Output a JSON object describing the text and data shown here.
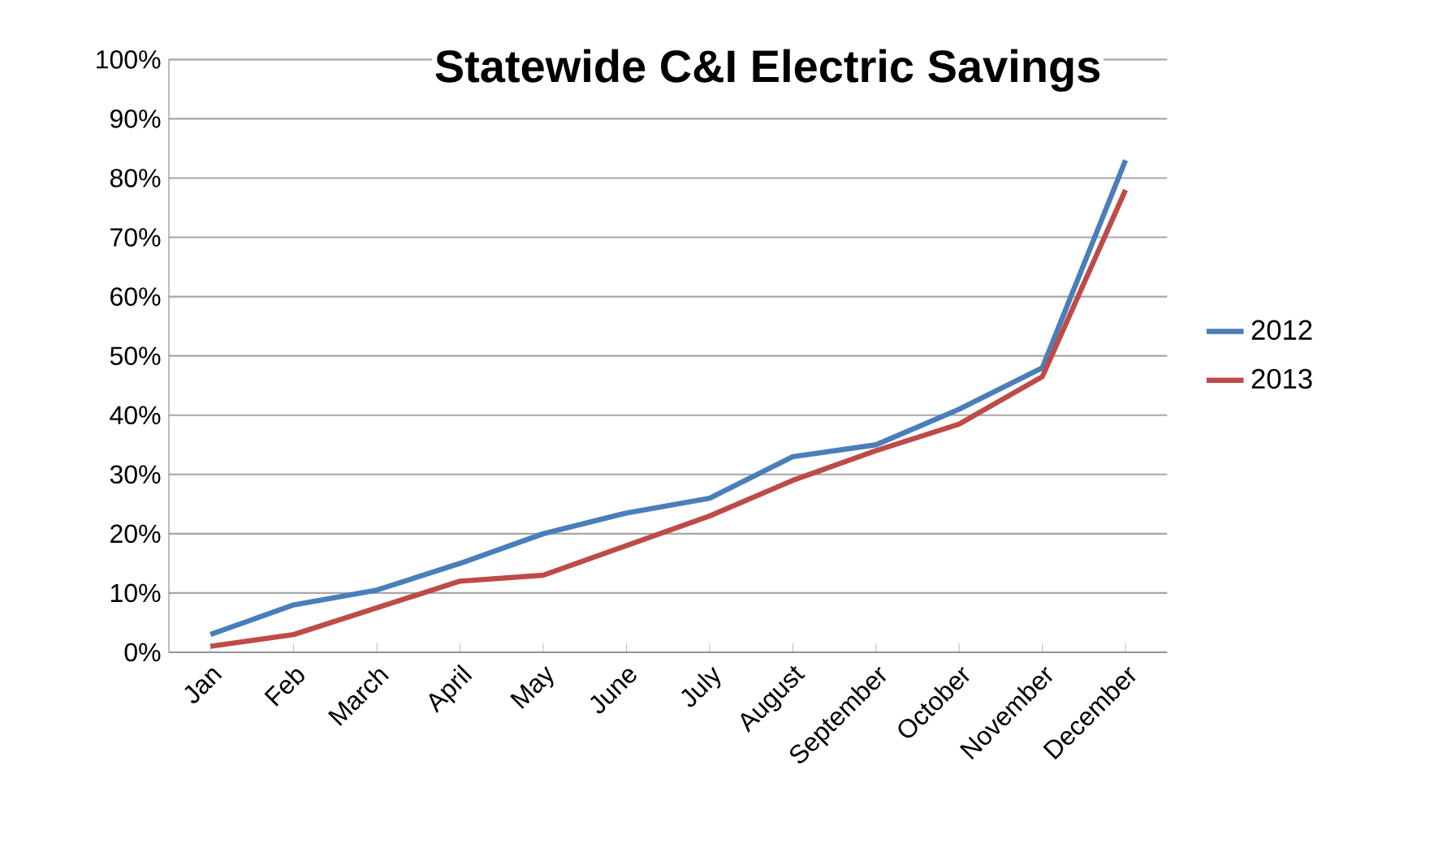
{
  "chart_data": {
    "type": "line",
    "title": "**Statewide C&I Electric Savings**",
    "categories": [
      "Jan",
      "Feb",
      "March",
      "April",
      "May",
      "June",
      "July",
      "August",
      "September",
      "October",
      "November",
      "December"
    ],
    "series": [
      {
        "name": "2012",
        "color": "#4a7ebb",
        "values": [
          3,
          8,
          10.5,
          15,
          20,
          23.5,
          26,
          33,
          35,
          41,
          48,
          83
        ]
      },
      {
        "name": "2013",
        "color": "#be4b48",
        "values": [
          1,
          3,
          7.5,
          12,
          13,
          18,
          23,
          29,
          34,
          38.5,
          46.5,
          78
        ]
      }
    ],
    "ylim": [
      0,
      100
    ],
    "yticks": [
      {
        "value": 0,
        "label": "0%"
      },
      {
        "value": 10,
        "label": "10%"
      },
      {
        "value": 20,
        "label": "20%"
      },
      {
        "value": 30,
        "label": "30%"
      },
      {
        "value": 40,
        "label": "40%"
      },
      {
        "value": 50,
        "label": "50%"
      },
      {
        "value": 60,
        "label": "60%"
      },
      {
        "value": 70,
        "label": "70%"
      },
      {
        "value": 80,
        "label": "80%"
      },
      {
        "value": 90,
        "label": "90%"
      },
      {
        "value": 100,
        "label": "100%"
      }
    ],
    "grid": "y",
    "legend": "right",
    "marker": "none",
    "line_style": "solid"
  }
}
